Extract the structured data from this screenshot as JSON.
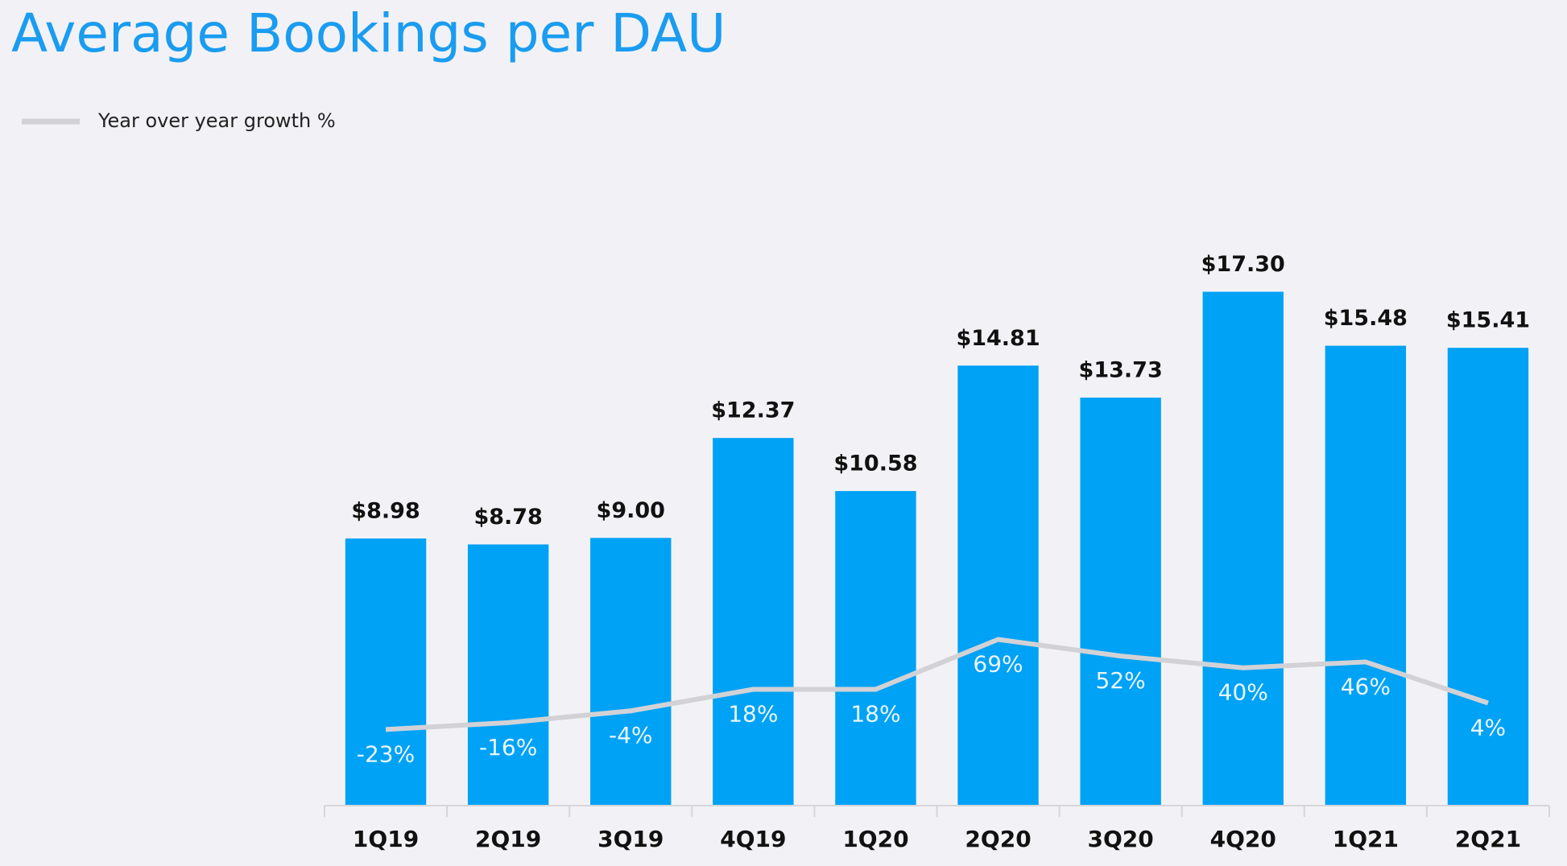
{
  "chart_data": {
    "type": "bar",
    "title": "Average Bookings per DAU",
    "categories": [
      "1Q19",
      "2Q19",
      "3Q19",
      "4Q19",
      "1Q20",
      "2Q20",
      "3Q20",
      "4Q20",
      "1Q21",
      "2Q21"
    ],
    "series": [
      {
        "color": "#00a2f5",
        "values": [
          8.98,
          8.78,
          9.0,
          12.37,
          10.58,
          14.81,
          13.73,
          17.3,
          15.48,
          15.41
        ],
        "value_labels": [
          "$8.98",
          "$8.78",
          "$9.00",
          "$12.37",
          "$10.58",
          "$14.81",
          "$13.73",
          "$17.30",
          "$15.48",
          "$15.41"
        ]
      },
      {
        "name": "Year over year growth %",
        "type": "line",
        "axis": "y2",
        "color": "#d2d2d6",
        "values": [
          -23,
          -16,
          -4,
          18,
          18,
          69,
          52,
          40,
          46,
          4
        ],
        "value_labels": [
          "-23%",
          "-16%",
          "-4%",
          "18%",
          "18%",
          "69%",
          "52%",
          "40%",
          "46%",
          "4%"
        ]
      }
    ],
    "ylim": [
      0,
      20
    ],
    "y2lim": [
      -100,
      506
    ]
  }
}
